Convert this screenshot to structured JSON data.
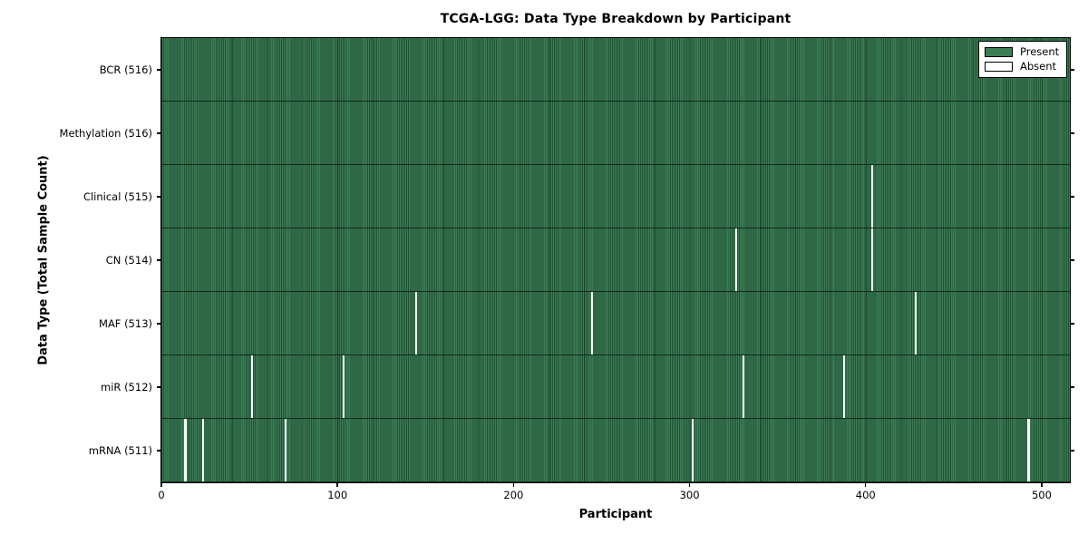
{
  "chart_data": {
    "type": "heatmap",
    "title": "TCGA-LGG: Data Type Breakdown by Participant",
    "xlabel": "Participant",
    "ylabel": "Data Type (Total Sample Count)",
    "n_participants": 516,
    "x_ticks": [
      0,
      100,
      200,
      300,
      400,
      500
    ],
    "xlim": [
      0,
      516
    ],
    "grid": false,
    "legend_position": "upper-right",
    "legend": [
      {
        "label": "Present",
        "color": "#3b7e54"
      },
      {
        "label": "Absent",
        "color": "#ffffff"
      }
    ],
    "colors": {
      "present_fill": "#3b7e54",
      "cell_edge": "#235138",
      "absent_fill": "#ffffff",
      "moire_line": "rgba(0,0,0,0.25)"
    },
    "rows": [
      {
        "data_type": "BCR",
        "label": "BCR (516)",
        "present_count": 516,
        "absent_count": 0,
        "absent_participants": []
      },
      {
        "data_type": "Methylation",
        "label": "Methylation (516)",
        "present_count": 516,
        "absent_count": 0,
        "absent_participants": []
      },
      {
        "data_type": "Clinical",
        "label": "Clinical (515)",
        "present_count": 515,
        "absent_count": 1,
        "absent_participants": [
          403
        ]
      },
      {
        "data_type": "CN",
        "label": "CN (514)",
        "present_count": 514,
        "absent_count": 2,
        "absent_participants": [
          326,
          403
        ]
      },
      {
        "data_type": "MAF",
        "label": "MAF (513)",
        "present_count": 513,
        "absent_count": 3,
        "absent_participants": [
          144,
          244,
          428
        ]
      },
      {
        "data_type": "miR",
        "label": "miR (512)",
        "present_count": 512,
        "absent_count": 4,
        "absent_participants": [
          51,
          103,
          330,
          387
        ]
      },
      {
        "data_type": "mRNA",
        "label": "mRNA (511)",
        "present_count": 511,
        "absent_count": 5,
        "absent_participants": [
          13,
          23,
          70,
          301,
          492
        ]
      }
    ]
  }
}
